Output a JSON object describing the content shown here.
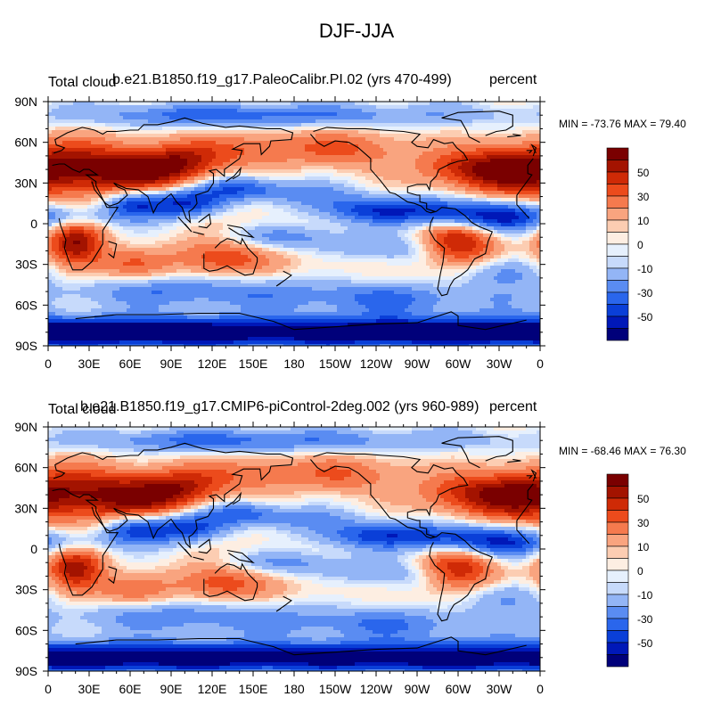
{
  "figure": {
    "title": "DJF-JJA"
  },
  "colors": {
    "palette": [
      "#00007a",
      "#0018b8",
      "#0a3fd8",
      "#2a66ec",
      "#5a8cf2",
      "#93b5f6",
      "#c7dafb",
      "#e6f0fd",
      "#fdeee2",
      "#fccdb2",
      "#f9a47f",
      "#f57a4e",
      "#ec4b1c",
      "#cf2a06",
      "#a31300",
      "#7a0000"
    ],
    "coast": "#000000"
  },
  "chart_data": [
    {
      "type": "heatmap",
      "name": "top",
      "variable": "Total cloud",
      "case": "b.e21.B1850.f19_g17.PaleoCalibr.PI.02 (yrs 470-499)",
      "units": "percent",
      "stats": "MIN = -73.76 MAX =  79.40",
      "x_ticks": [
        "0",
        "30E",
        "60E",
        "90E",
        "120E",
        "150E",
        "180",
        "150W",
        "120W",
        "90W",
        "60W",
        "30W",
        "0"
      ],
      "y_ticks": [
        "90N",
        "60N",
        "30N",
        "0",
        "30S",
        "60S",
        "90S"
      ],
      "xlim": [
        0,
        360
      ],
      "ylim": [
        -90,
        90
      ],
      "colorbar_labels": [
        "50",
        "30",
        "10",
        "0",
        "-10",
        "-30",
        "-50"
      ],
      "contour_levels": [
        -60,
        -50,
        -40,
        -30,
        -20,
        -10,
        -5,
        0,
        5,
        10,
        20,
        30,
        40,
        50,
        60
      ],
      "scale": 1.0
    },
    {
      "type": "heatmap",
      "name": "bottom",
      "variable": "Total cloud",
      "case": "b.e21.B1850.f19_g17.CMIP6-piControl-2deg.002 (yrs 960-989)",
      "units": "percent",
      "stats": "MIN = -68.46 MAX =  76.30",
      "x_ticks": [
        "0",
        "30E",
        "60E",
        "90E",
        "120E",
        "150E",
        "180",
        "150W",
        "120W",
        "90W",
        "60W",
        "30W",
        "0"
      ],
      "y_ticks": [
        "90N",
        "60N",
        "30N",
        "0",
        "30S",
        "60S",
        "90S"
      ],
      "xlim": [
        0,
        360
      ],
      "ylim": [
        -90,
        90
      ],
      "colorbar_labels": [
        "50",
        "30",
        "10",
        "0",
        "-10",
        "-30",
        "-50"
      ],
      "contour_levels": [
        -60,
        -50,
        -40,
        -30,
        -20,
        -10,
        -5,
        0,
        5,
        10,
        20,
        30,
        40,
        50,
        60
      ],
      "scale": 0.93
    }
  ]
}
